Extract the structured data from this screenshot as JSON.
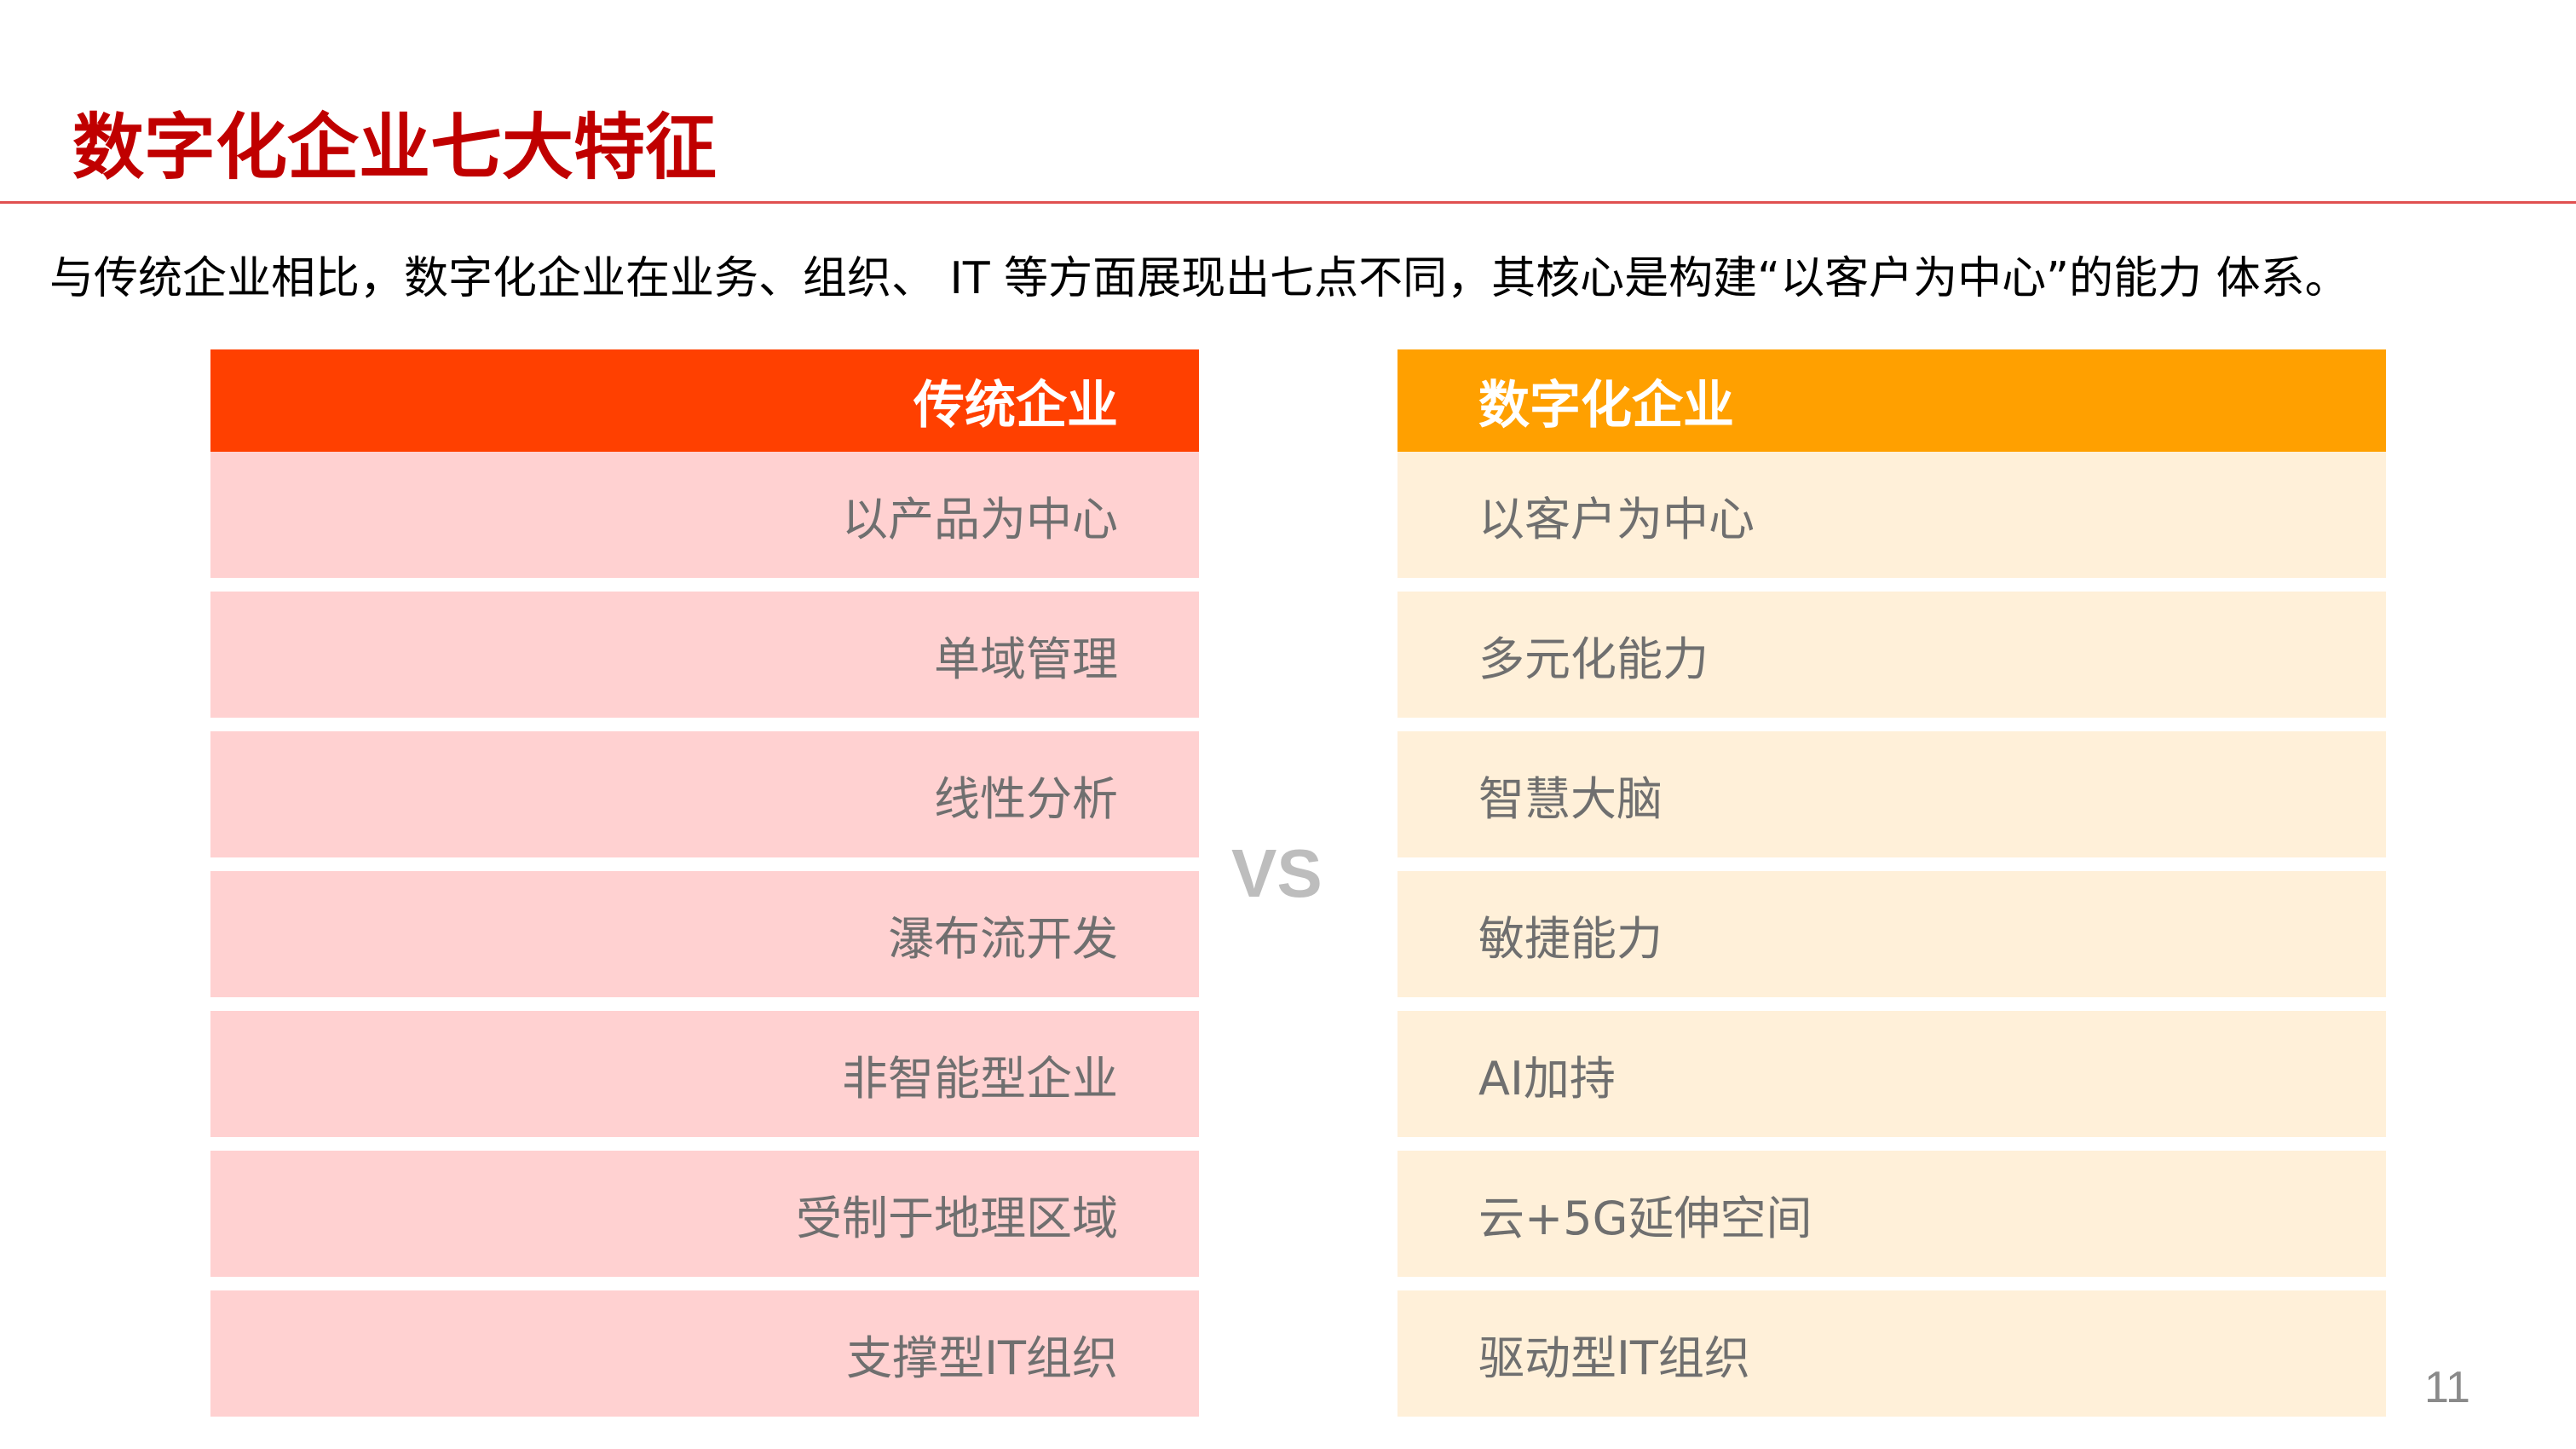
{
  "title": "数字化企业七大特征",
  "intro": "与传统企业相比，数字化企业在业务、组织、   IT 等方面展现出七点不同，其核心是构建“以客户为中心”的能力 体系。",
  "traditional": {
    "header": "传统企业",
    "items": [
      {
        "label": "以产品为中心"
      },
      {
        "label": "单域管理"
      },
      {
        "label": "线性分析"
      },
      {
        "label": "瀑布流开发"
      },
      {
        "label": "非智能型企业"
      },
      {
        "label": "受制于地理区域"
      },
      {
        "label": "支撑型IT组织"
      }
    ]
  },
  "vs_label": "VS",
  "digital": {
    "header": "数字化企业",
    "items": [
      {
        "label": "以客户为中心"
      },
      {
        "label": "多元化能力"
      },
      {
        "label": "智慧大脑"
      },
      {
        "label": "敏捷能力"
      },
      {
        "label": "AI加持"
      },
      {
        "label": "云+5G延伸空间"
      },
      {
        "label": "驱动型IT组织"
      }
    ]
  },
  "page_number": "11",
  "colors": {
    "title": "#c00000",
    "traditional_header": "#ff4000",
    "traditional_row": "#ffd1d1",
    "digital_header": "#ffa000",
    "digital_row": "#fff0d9"
  }
}
